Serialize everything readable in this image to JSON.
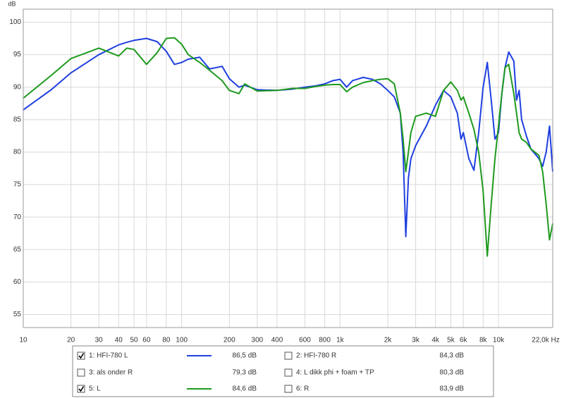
{
  "chart_data": {
    "type": "line",
    "y_unit_label": "dB",
    "xscale": "log",
    "grid": true,
    "xlim": [
      10,
      22000
    ],
    "ylim": [
      53,
      102
    ],
    "yticks": [
      55,
      60,
      65,
      70,
      75,
      80,
      85,
      90,
      95,
      100
    ],
    "xticks": [
      10,
      20,
      30,
      40,
      50,
      60,
      80,
      100,
      200,
      300,
      400,
      600,
      800,
      {
        "value": 1000,
        "label": "1k"
      },
      {
        "value": 2000,
        "label": "2k"
      },
      {
        "value": 3000,
        "label": "3k"
      },
      {
        "value": 4000,
        "label": "4k"
      },
      {
        "value": 5000,
        "label": "5k"
      },
      {
        "value": 6000,
        "label": "6k"
      },
      {
        "value": 8000,
        "label": "8k"
      },
      {
        "value": 10000,
        "label": "10k"
      },
      {
        "value": 22000,
        "label": "22,0k Hz"
      }
    ],
    "x": [
      10,
      15,
      20,
      30,
      40,
      45,
      50,
      60,
      70,
      80,
      90,
      100,
      110,
      130,
      150,
      180,
      200,
      230,
      250,
      300,
      400,
      500,
      600,
      700,
      800,
      900,
      1000,
      1100,
      1200,
      1400,
      1600,
      1800,
      2000,
      2200,
      2400,
      2500,
      2600,
      2700,
      2800,
      3000,
      3500,
      4000,
      4500,
      5000,
      5500,
      5800,
      6000,
      6500,
      7000,
      7500,
      8000,
      8500,
      9000,
      9500,
      10000,
      10500,
      11000,
      11600,
      12500,
      13000,
      13500,
      14000,
      15000,
      16000,
      18000,
      19000,
      20000,
      21000,
      22000
    ],
    "series": [
      {
        "name": "1: HFI-780 L",
        "color": "#1f3fe0",
        "text_color": "#1a1a9a",
        "readout": "86,5 dB",
        "checked": true,
        "values": [
          86.5,
          89.6,
          92.2,
          95,
          96.5,
          96.9,
          97.2,
          97.5,
          97,
          95.5,
          93.5,
          93.8,
          94.3,
          94.6,
          92.8,
          93.2,
          91.3,
          90,
          90.3,
          89.6,
          89.5,
          89.7,
          90,
          90.2,
          90.5,
          91,
          91.2,
          90,
          91,
          91.5,
          91.2,
          90.5,
          89.5,
          88.5,
          86,
          80,
          67,
          76,
          79,
          81,
          84,
          87.2,
          89.5,
          88.5,
          86,
          82,
          83,
          79,
          77.2,
          83,
          90,
          93.8,
          88,
          82,
          83,
          89,
          93,
          95.4,
          94,
          88,
          89.5,
          85,
          82.5,
          80.5,
          79,
          77.8,
          80,
          84,
          77
        ]
      },
      {
        "name": "5: L",
        "color": "#1e9a1e",
        "text_color": "#1e9a1e",
        "readout": "84,6 dB",
        "checked": true,
        "values": [
          88.3,
          91.8,
          94.4,
          96,
          94.8,
          96,
          95.8,
          93.5,
          95.3,
          97.5,
          97.6,
          96.6,
          95,
          93.8,
          92.6,
          91,
          89.5,
          89,
          90.5,
          89.4,
          89.5,
          89.8,
          89.8,
          90.1,
          90.3,
          90.4,
          90.4,
          89.3,
          90,
          90.7,
          91,
          91.2,
          91.3,
          90.5,
          86,
          82,
          77,
          80,
          83,
          85.5,
          86,
          85.5,
          89.5,
          90.8,
          89.5,
          88,
          88.5,
          86,
          83.5,
          80,
          74,
          64,
          72,
          79,
          84,
          89,
          93,
          93.5,
          89,
          86,
          83,
          82,
          81.5,
          80.5,
          79.5,
          77,
          72,
          66.5,
          69
        ]
      }
    ],
    "inactive_traces": [
      {
        "name": "2: HFI-780 R",
        "text_color": "#c00000",
        "readout": "84,3 dB",
        "checked": false
      },
      {
        "name": "3: als onder R",
        "text_color": "#c00000",
        "readout": "79,3 dB",
        "checked": false
      },
      {
        "name": "4: L dikk phi + foam + TP",
        "text_color": "#1a1a7a",
        "readout": "80,3 dB",
        "checked": false
      },
      {
        "name": "6: R",
        "text_color": "#c00000",
        "readout": "83,9 dB",
        "checked": false
      }
    ]
  }
}
